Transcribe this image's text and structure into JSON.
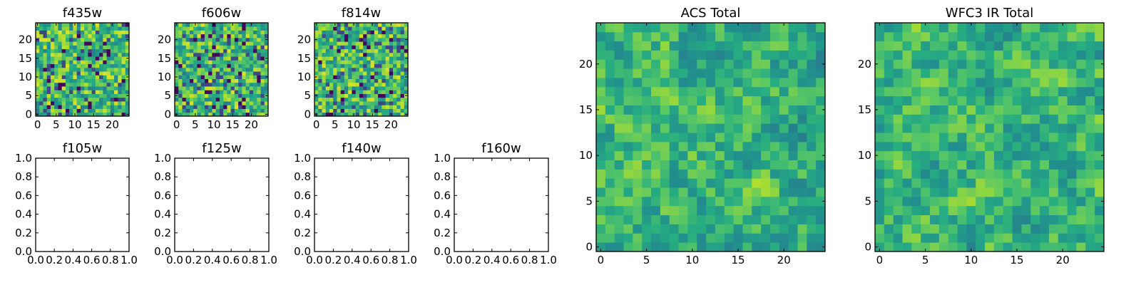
{
  "figure": {
    "background": "#ffffff",
    "colormap": "viridis"
  },
  "chart_data": [
    {
      "type": "heatmap",
      "title": "f435w",
      "grid": false,
      "xlabel": "",
      "ylabel": "",
      "xlim": [
        -0.5,
        24.5
      ],
      "ylim": [
        -0.5,
        24.5
      ],
      "xticks": [
        0,
        5,
        10,
        15,
        20
      ],
      "xtick_labels": [
        "0",
        "5",
        "10",
        "15",
        "20"
      ],
      "yticks": [
        0,
        5,
        10,
        15,
        20
      ],
      "ytick_labels": [
        "0",
        "5",
        "10",
        "15",
        "20"
      ],
      "shape": [
        25,
        25
      ],
      "values_description": "noise-like pixel intensities (viridis)"
    },
    {
      "type": "heatmap",
      "title": "f606w",
      "grid": false,
      "xlabel": "",
      "ylabel": "",
      "xlim": [
        -0.5,
        24.5
      ],
      "ylim": [
        -0.5,
        24.5
      ],
      "xticks": [
        0,
        5,
        10,
        15,
        20
      ],
      "xtick_labels": [
        "0",
        "5",
        "10",
        "15",
        "20"
      ],
      "yticks": [
        0,
        5,
        10,
        15,
        20
      ],
      "ytick_labels": [
        "0",
        "5",
        "10",
        "15",
        "20"
      ],
      "shape": [
        25,
        25
      ]
    },
    {
      "type": "heatmap",
      "title": "f814w",
      "grid": false,
      "xlabel": "",
      "ylabel": "",
      "xlim": [
        -0.5,
        24.5
      ],
      "ylim": [
        -0.5,
        24.5
      ],
      "xticks": [
        0,
        5,
        10,
        15,
        20
      ],
      "xtick_labels": [
        "0",
        "5",
        "10",
        "15",
        "20"
      ],
      "yticks": [
        0,
        5,
        10,
        15,
        20
      ],
      "ytick_labels": [
        "0",
        "5",
        "10",
        "15",
        "20"
      ],
      "shape": [
        25,
        25
      ]
    },
    {
      "type": "empty",
      "title": "f105w",
      "xlim": [
        0,
        1
      ],
      "ylim": [
        0,
        1
      ],
      "xtick_labels": [
        "0.0",
        "0.2",
        "0.4",
        "0.6",
        "0.8",
        "1.0"
      ],
      "ytick_labels": [
        "0.0",
        "0.2",
        "0.4",
        "0.6",
        "0.8",
        "1.0"
      ]
    },
    {
      "type": "empty",
      "title": "f125w",
      "xlim": [
        0,
        1
      ],
      "ylim": [
        0,
        1
      ],
      "xtick_labels": [
        "0.0",
        "0.2",
        "0.4",
        "0.6",
        "0.8",
        "1.0"
      ],
      "ytick_labels": [
        "0.0",
        "0.2",
        "0.4",
        "0.6",
        "0.8",
        "1.0"
      ]
    },
    {
      "type": "empty",
      "title": "f140w",
      "xlim": [
        0,
        1
      ],
      "ylim": [
        0,
        1
      ],
      "xtick_labels": [
        "0.0",
        "0.2",
        "0.4",
        "0.6",
        "0.8",
        "1.0"
      ],
      "ytick_labels": [
        "0.0",
        "0.2",
        "0.4",
        "0.6",
        "0.8",
        "1.0"
      ]
    },
    {
      "type": "empty",
      "title": "f160w",
      "xlim": [
        0,
        1
      ],
      "ylim": [
        0,
        1
      ],
      "xtick_labels": [
        "0.0",
        "0.2",
        "0.4",
        "0.6",
        "0.8",
        "1.0"
      ],
      "ytick_labels": [
        "0.0",
        "0.2",
        "0.4",
        "0.6",
        "0.8",
        "1.0"
      ]
    },
    {
      "type": "heatmap",
      "title": "ACS Total",
      "grid": false,
      "xlabel": "",
      "ylabel": "",
      "xlim": [
        -0.5,
        24.5
      ],
      "ylim": [
        -0.5,
        24.5
      ],
      "xticks": [
        0,
        5,
        10,
        15,
        20
      ],
      "xtick_labels": [
        "0",
        "5",
        "10",
        "15",
        "20"
      ],
      "yticks": [
        0,
        5,
        10,
        15,
        20
      ],
      "ytick_labels": [
        "0",
        "5",
        "10",
        "15",
        "20"
      ],
      "shape": [
        25,
        25
      ]
    },
    {
      "type": "heatmap",
      "title": "WFC3 IR Total",
      "grid": false,
      "xlabel": "",
      "ylabel": "",
      "xlim": [
        -0.5,
        24.5
      ],
      "ylim": [
        -0.5,
        24.5
      ],
      "xticks": [
        0,
        5,
        10,
        15,
        20
      ],
      "xtick_labels": [
        "0",
        "5",
        "10",
        "15",
        "20"
      ],
      "yticks": [
        0,
        5,
        10,
        15,
        20
      ],
      "ytick_labels": [
        "0",
        "5",
        "10",
        "15",
        "20"
      ],
      "shape": [
        25,
        25
      ]
    }
  ]
}
